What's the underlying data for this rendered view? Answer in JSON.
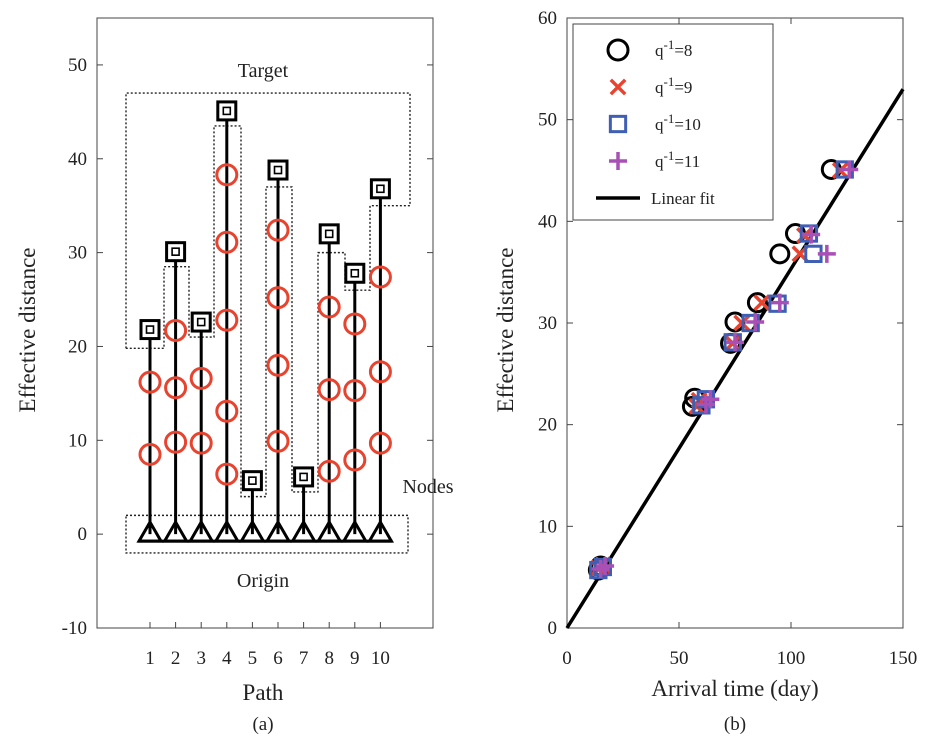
{
  "chart_data": [
    {
      "type": "stem",
      "panel_label": "(a)",
      "xlabel": "Path",
      "ylabel": "Effective distance",
      "ylim": [
        -10,
        55
      ],
      "yticks": [
        -10,
        0,
        10,
        20,
        30,
        40,
        50
      ],
      "xticks": [
        1,
        2,
        3,
        4,
        5,
        6,
        7,
        8,
        9,
        10
      ],
      "grid": false,
      "annotations": {
        "target": "Target",
        "nodes": "Nodes",
        "origin": "Origin"
      },
      "paths": [
        {
          "path": 1,
          "origin": 0,
          "nodes": [
            8.5,
            16.2
          ],
          "target": 21.8
        },
        {
          "path": 2,
          "origin": 0,
          "nodes": [
            9.8,
            15.6,
            21.7
          ],
          "target": 30.1
        },
        {
          "path": 3,
          "origin": 0,
          "nodes": [
            9.7,
            16.6
          ],
          "target": 22.6
        },
        {
          "path": 4,
          "origin": 0,
          "nodes": [
            6.4,
            13.1,
            22.8,
            31.1,
            38.3
          ],
          "target": 45.1
        },
        {
          "path": 5,
          "origin": 0,
          "nodes": [],
          "target": 5.7
        },
        {
          "path": 6,
          "origin": 0,
          "nodes": [
            9.9,
            18.0,
            25.2,
            32.4
          ],
          "target": 38.8
        },
        {
          "path": 7,
          "origin": 0,
          "nodes": [],
          "target": 6.1
        },
        {
          "path": 8,
          "origin": 0,
          "nodes": [
            6.7,
            15.4,
            24.2
          ],
          "target": 32.0
        },
        {
          "path": 9,
          "origin": 0,
          "nodes": [
            7.9,
            15.3,
            22.4
          ],
          "target": 27.8
        },
        {
          "path": 10,
          "origin": 0,
          "nodes": [
            9.7,
            17.3,
            27.4
          ],
          "target": 36.8
        }
      ],
      "colors": {
        "stem": "#000000",
        "nodes": "#e8432e",
        "target": "#000000",
        "origin": "#000000"
      }
    },
    {
      "type": "scatter",
      "panel_label": "(b)",
      "xlabel": "Arrival time (day)",
      "ylabel": "Effective distance",
      "xlim": [
        0,
        150
      ],
      "ylim": [
        0,
        60
      ],
      "xticks": [
        0,
        50,
        100,
        150
      ],
      "yticks": [
        0,
        10,
        20,
        30,
        40,
        50,
        60
      ],
      "grid": false,
      "legend_placement": "top-left",
      "series": [
        {
          "name": "q-1=8",
          "marker": "circle",
          "color": "#000000",
          "points": [
            [
              14,
              5.7
            ],
            [
              15,
              6.1
            ],
            [
              56,
              21.8
            ],
            [
              57,
              22.6
            ],
            [
              73,
              28.0
            ],
            [
              75,
              30.1
            ],
            [
              85,
              32.0
            ],
            [
              95,
              36.8
            ],
            [
              102,
              38.8
            ],
            [
              118,
              45.1
            ]
          ]
        },
        {
          "name": "q-1=9",
          "marker": "x",
          "color": "#e8432e",
          "points": [
            [
              14,
              5.9
            ],
            [
              16,
              6.2
            ],
            [
              58,
              21.8
            ],
            [
              59,
              22.4
            ],
            [
              74,
              28.0
            ],
            [
              78,
              30.0
            ],
            [
              87,
              32.0
            ],
            [
              104,
              36.8
            ],
            [
              106,
              38.6
            ],
            [
              122,
              45.0
            ]
          ]
        },
        {
          "name": "q-1=10",
          "marker": "square",
          "color": "#3f5fb5",
          "points": [
            [
              14,
              5.7
            ],
            [
              16,
              6.0
            ],
            [
              60,
              21.9
            ],
            [
              62,
              22.5
            ],
            [
              74,
              28.1
            ],
            [
              82,
              30.0
            ],
            [
              94,
              31.9
            ],
            [
              110,
              36.8
            ],
            [
              108,
              38.8
            ],
            [
              124,
              45.1
            ]
          ]
        },
        {
          "name": "q-1=11",
          "marker": "plus",
          "color": "#a850b5",
          "points": [
            [
              15,
              5.8
            ],
            [
              17,
              6.1
            ],
            [
              62,
              22.0
            ],
            [
              64,
              22.5
            ],
            [
              75,
              28.1
            ],
            [
              84,
              30.1
            ],
            [
              95,
              32.0
            ],
            [
              116,
              36.8
            ],
            [
              109,
              38.7
            ],
            [
              126,
              45.1
            ]
          ]
        },
        {
          "name": "Linear fit",
          "marker": "line",
          "color": "#000000",
          "line": [
            [
              0,
              0
            ],
            [
              150,
              53
            ]
          ]
        }
      ]
    }
  ]
}
